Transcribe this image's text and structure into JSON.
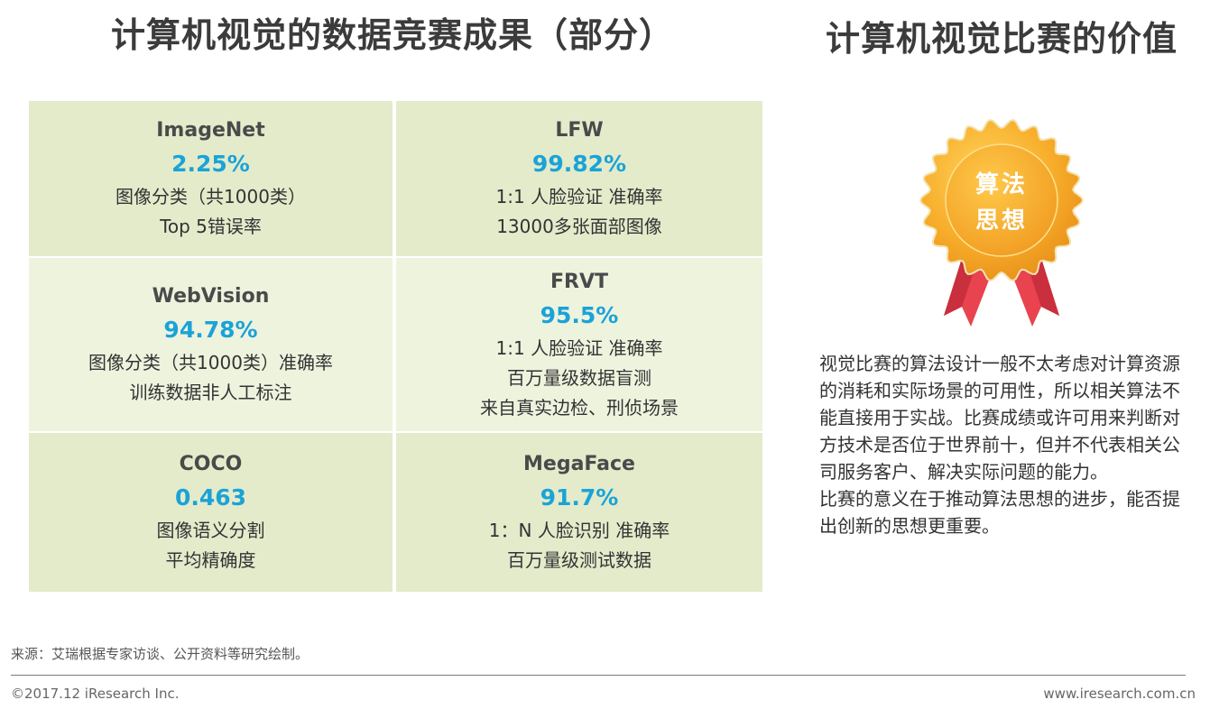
{
  "left_title": "计算机视觉的数据竞赛成果（部分）",
  "right_title": "计算机视觉比赛的价值",
  "cells": [
    {
      "name": "ImageNet",
      "value": "2.25%",
      "lines": [
        "图像分类（共1000类）",
        "Top 5错误率"
      ]
    },
    {
      "name": "LFW",
      "value": "99.82%",
      "lines": [
        "1:1 人脸验证 准确率",
        "13000多张面部图像"
      ]
    },
    {
      "name": "WebVision",
      "value": "94.78%",
      "lines": [
        "图像分类（共1000类）准确率",
        "训练数据非人工标注"
      ]
    },
    {
      "name": "FRVT",
      "value": "95.5%",
      "lines": [
        "1:1 人脸验证 准确率",
        "百万量级数据盲测",
        "来自真实边检、刑侦场景"
      ]
    },
    {
      "name": "COCO",
      "value": "0.463",
      "lines": [
        "图像语义分割",
        "平均精确度"
      ]
    },
    {
      "name": "MegaFace",
      "value": "91.7%",
      "lines": [
        "1：N 人脸识别 准确率",
        "百万量级测试数据"
      ]
    }
  ],
  "medal": {
    "line1": "算法",
    "line2": "思想",
    "badge_color": "#f5a623",
    "ribbon_color": "#e8434f"
  },
  "paragraph": {
    "p1": "视觉比赛的算法设计一般不太考虑对计算资源的消耗和实际场景的可用性，所以相关算法不能直接用于实战。比赛成绩或许可用来判断对方技术是否位于世界前十，但并不代表相关公司服务客户、解决实际问题的能力。",
    "p2": "比赛的意义在于推动算法思想的进步，能否提出创新的思想更重要。"
  },
  "footer": {
    "source": "来源：艾瑞根据专家访谈、公开资料等研究绘制。",
    "copyright": "©2017.12 iResearch Inc.",
    "website": "www.iresearch.com.cn"
  }
}
